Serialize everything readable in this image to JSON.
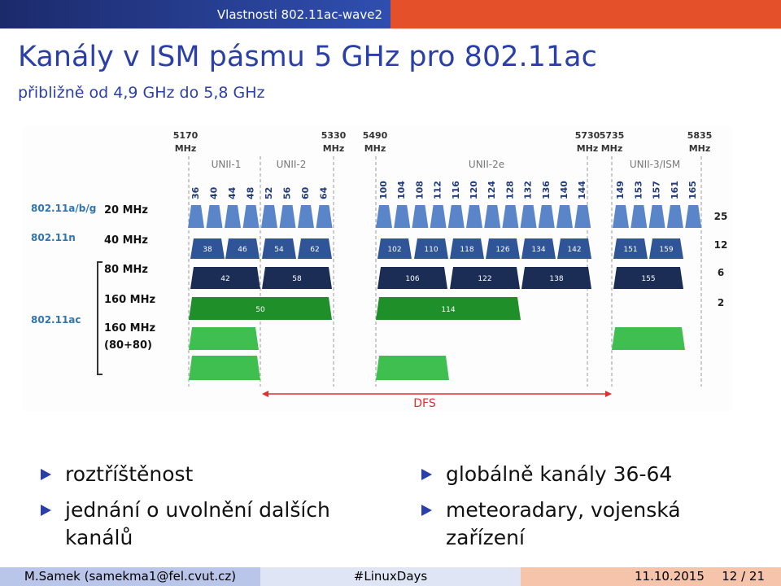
{
  "header": {
    "section": "Vlastnosti 802.11ac-wave2"
  },
  "title": "Kanály v ISM pásmu 5 GHz pro 802.11ac",
  "subtitle": "přibližně od 4,9 GHz do 5,8 GHz",
  "diagram": {
    "frequencies": [
      {
        "value": "5170",
        "unit": "MHz"
      },
      {
        "value": "5330",
        "unit": "MHz"
      },
      {
        "value": "5490",
        "unit": "MHz"
      },
      {
        "value": "5730",
        "unit": "MHz"
      },
      {
        "value": "5735",
        "unit": "MHz"
      },
      {
        "value": "5835",
        "unit": "MHz"
      }
    ],
    "bands": [
      "UNII-1",
      "UNII-2",
      "UNII-2e",
      "UNII-3/ISM"
    ],
    "standards": [
      "802.11a/b/g",
      "802.11n",
      "802.11ac"
    ],
    "widths": [
      "20 MHz",
      "40 MHz",
      "80 MHz",
      "160 MHz",
      "160 MHz",
      "(80+80)"
    ],
    "channels20": [
      "36",
      "40",
      "44",
      "48",
      "52",
      "56",
      "60",
      "64",
      "100",
      "104",
      "108",
      "112",
      "116",
      "120",
      "124",
      "128",
      "132",
      "136",
      "140",
      "144",
      "149",
      "153",
      "157",
      "161",
      "165"
    ],
    "channels40": [
      "38",
      "46",
      "54",
      "62",
      "102",
      "110",
      "118",
      "126",
      "134",
      "142",
      "151",
      "159"
    ],
    "channels80": [
      "42",
      "58",
      "106",
      "122",
      "138",
      "155"
    ],
    "channels160": [
      "50",
      "114"
    ],
    "counts": [
      "25",
      "12",
      "6",
      "2"
    ],
    "dfs": "DFS"
  },
  "bullets_left": [
    "roztříštěnost",
    "jednání o uvolnění dalších kanálů"
  ],
  "bullets_right": [
    "globálně kanály 36-64",
    "meteoradary, vojenská zařízení"
  ],
  "footer": {
    "author": "M.Samek (samekma1@fel.cvut.cz)",
    "event": "#LinuxDays",
    "date": "11.10.2015",
    "page": "12 / 21"
  }
}
